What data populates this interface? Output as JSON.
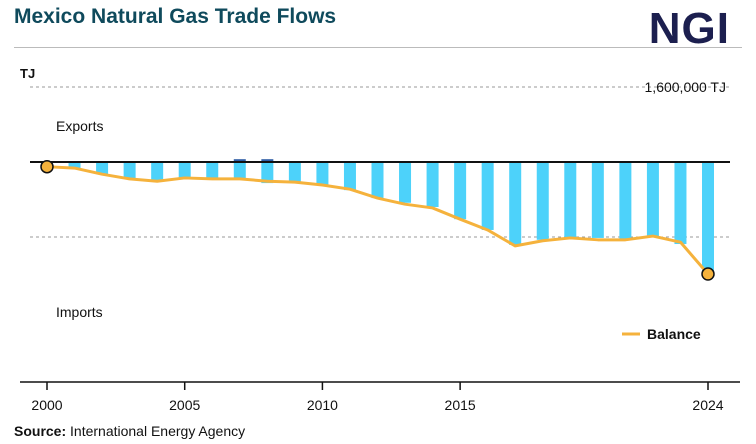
{
  "header": {
    "title": "Mexico Natural Gas Trade Flows",
    "logo": "NGI"
  },
  "source": {
    "label": "Source:",
    "text": "International Energy Agency"
  },
  "chart_data": {
    "type": "bar",
    "unit_label": "TJ",
    "x": [
      2000,
      2001,
      2002,
      2003,
      2004,
      2005,
      2006,
      2007,
      2008,
      2009,
      2010,
      2011,
      2012,
      2013,
      2014,
      2015,
      2016,
      2017,
      2018,
      2019,
      2020,
      2021,
      2022,
      2023,
      2024
    ],
    "x_tick_labels": [
      "2000",
      "2005",
      "2010",
      "2015",
      "2024"
    ],
    "x_tick_values": [
      2000,
      2005,
      2010,
      2015,
      2024
    ],
    "ylim": [
      -4700000,
      1600000
    ],
    "reference_lines": [
      {
        "value": 1600000,
        "label": "1,600,000 TJ"
      },
      {
        "value": -1600000,
        "label": ""
      }
    ],
    "region_labels": {
      "exports": "Exports",
      "imports": "Imports"
    },
    "series": [
      {
        "key": "exports",
        "color": "#2f5ea6",
        "values": [
          0,
          0,
          0,
          0,
          0,
          0,
          0,
          60000,
          60000,
          0,
          0,
          0,
          0,
          0,
          0,
          0,
          0,
          0,
          0,
          0,
          0,
          0,
          0,
          0,
          0
        ]
      },
      {
        "key": "imports",
        "color": "#4dd2fa",
        "values": [
          -60000,
          -130000,
          -260000,
          -360000,
          -410000,
          -340000,
          -360000,
          -380000,
          -450000,
          -450000,
          -490000,
          -600000,
          -770000,
          -870000,
          -960000,
          -1220000,
          -1450000,
          -1770000,
          -1660000,
          -1600000,
          -1620000,
          -1660000,
          -1580000,
          -1750000,
          -2410000
        ]
      },
      {
        "key": "balance",
        "name": "Balance",
        "type": "line",
        "color": "#f5b23c",
        "values": [
          -100000,
          -130000,
          -260000,
          -360000,
          -410000,
          -340000,
          -360000,
          -360000,
          -410000,
          -430000,
          -490000,
          -580000,
          -770000,
          -900000,
          -980000,
          -1220000,
          -1450000,
          -1790000,
          -1680000,
          -1620000,
          -1660000,
          -1660000,
          -1580000,
          -1710000,
          -2390000
        ]
      }
    ],
    "legend": {
      "position": "bottom-right",
      "label": "Balance"
    },
    "grid": false
  }
}
